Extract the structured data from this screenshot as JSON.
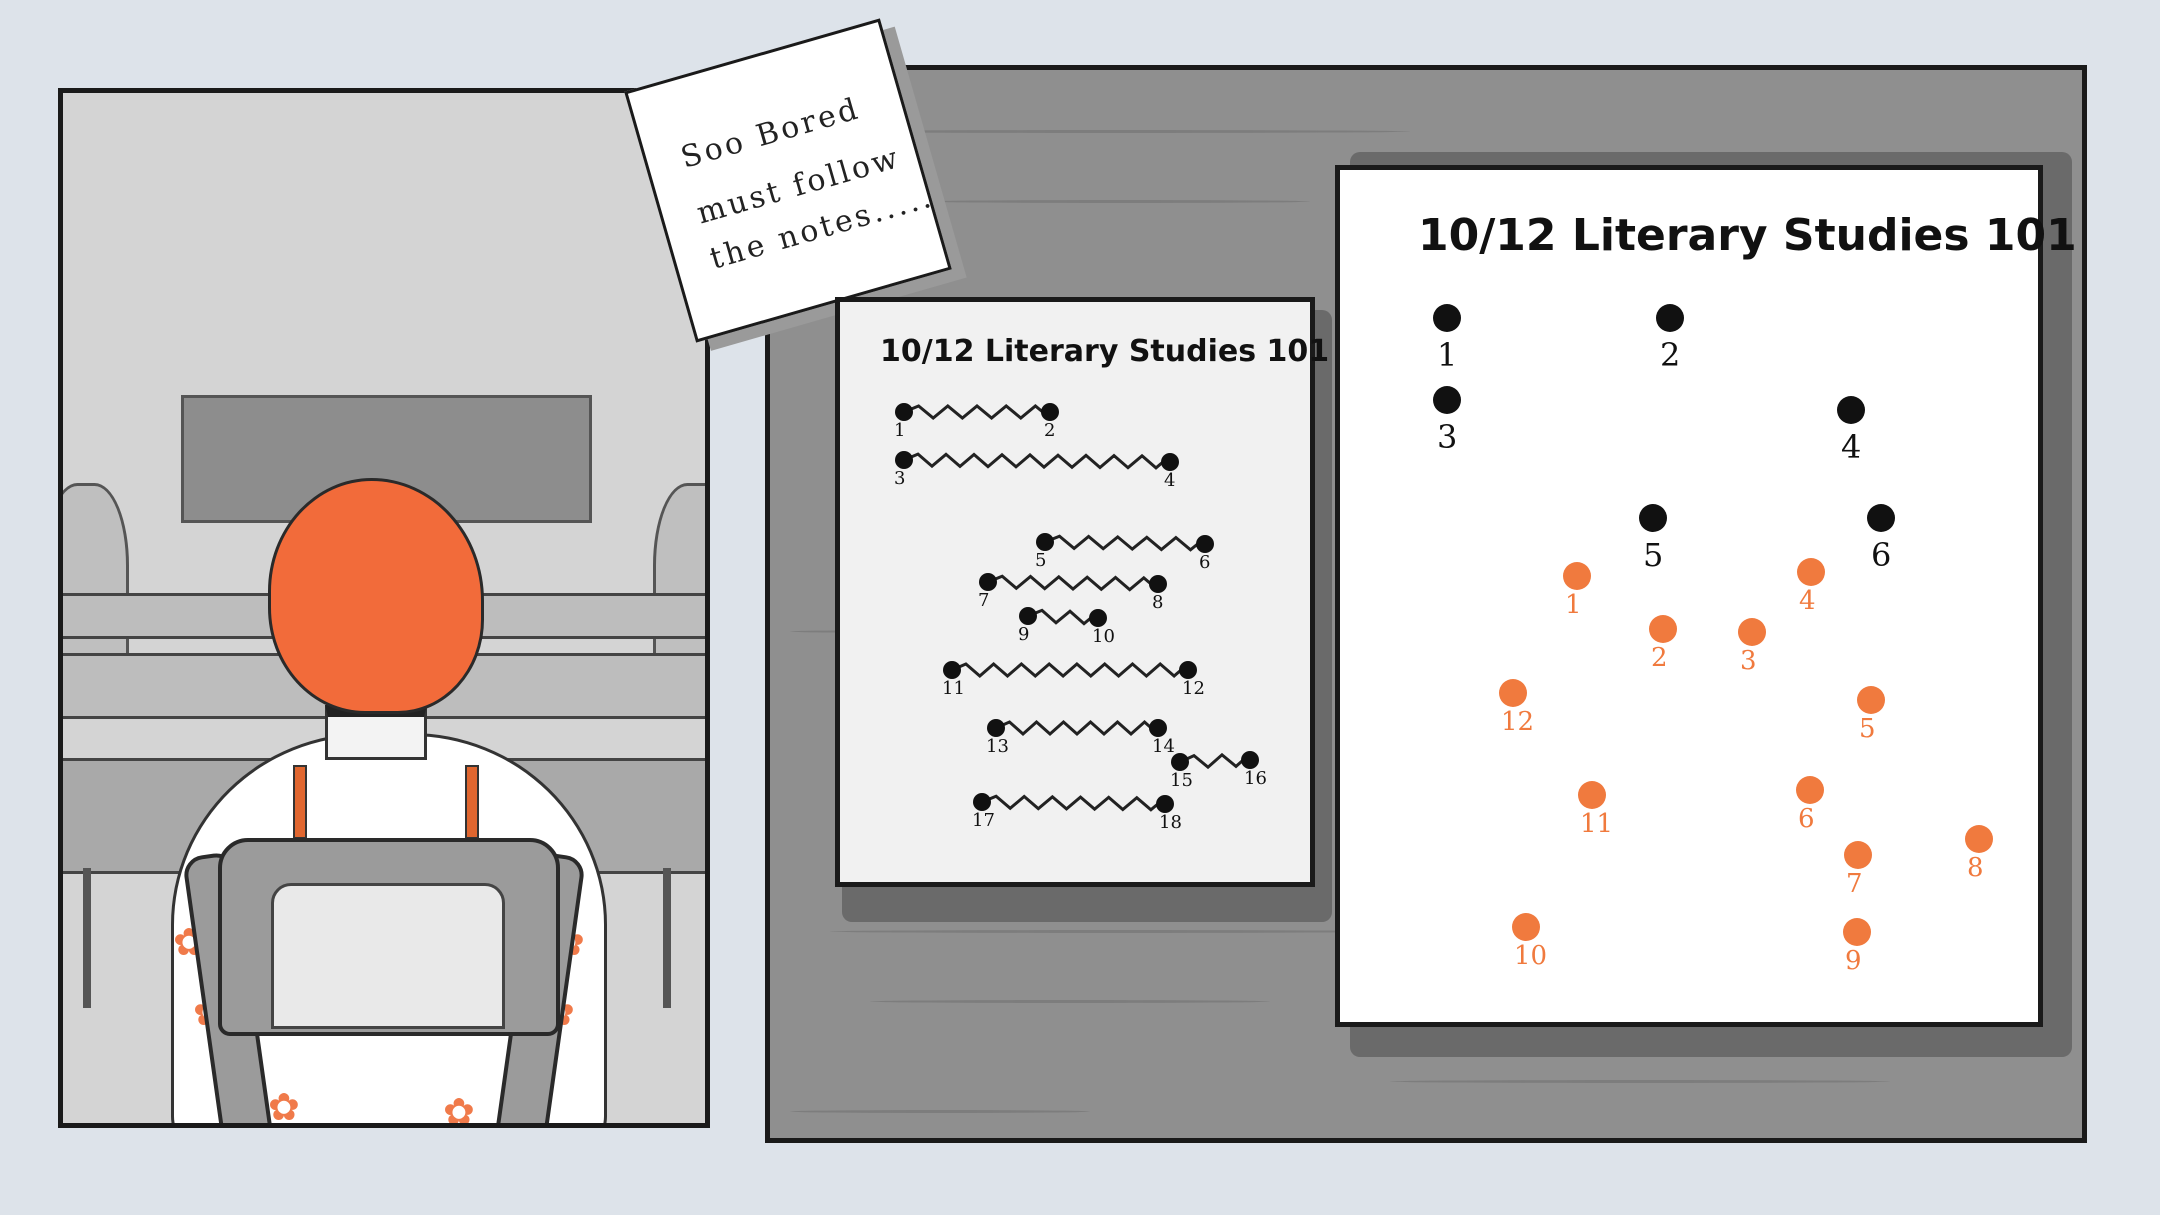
{
  "sticky_note": {
    "line1": "Soo Bored",
    "line2": "must follow",
    "line3": "the notes....."
  },
  "small_notes": {
    "title": "10/12  Literary Studies 101",
    "pairs": [
      {
        "a": {
          "label": "1"
        },
        "b": {
          "label": "2"
        }
      },
      {
        "a": {
          "label": "3"
        },
        "b": {
          "label": "4"
        }
      },
      {
        "a": {
          "label": "5"
        },
        "b": {
          "label": "6"
        }
      },
      {
        "a": {
          "label": "7"
        },
        "b": {
          "label": "8"
        }
      },
      {
        "a": {
          "label": "9"
        },
        "b": {
          "label": "10"
        }
      },
      {
        "a": {
          "label": "11"
        },
        "b": {
          "label": "12"
        }
      },
      {
        "a": {
          "label": "13"
        },
        "b": {
          "label": "14"
        }
      },
      {
        "a": {
          "label": "15"
        },
        "b": {
          "label": "16"
        }
      },
      {
        "a": {
          "label": "17"
        },
        "b": {
          "label": "18"
        }
      }
    ]
  },
  "big_notes": {
    "title": "10/12  Literary Studies 101",
    "black_dots": [
      "1",
      "2",
      "3",
      "4",
      "5",
      "6"
    ],
    "orange_dots": [
      "1",
      "2",
      "3",
      "4",
      "5",
      "6",
      "7",
      "8",
      "9",
      "10",
      "11",
      "12"
    ],
    "colors": {
      "black": "#111111",
      "orange": "#f07a3e"
    }
  },
  "colors": {
    "hair": "#f26b3a",
    "background": "#dde3ea",
    "desk": "#8f8f8f"
  }
}
